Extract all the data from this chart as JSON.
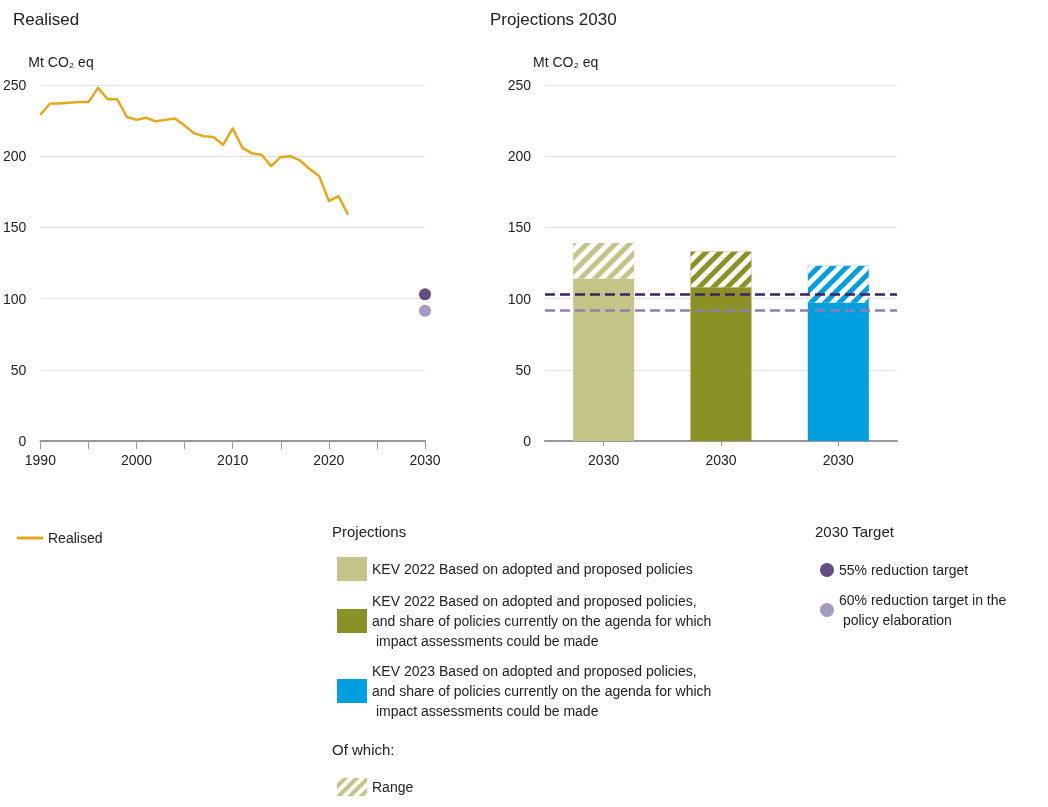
{
  "chart_data": [
    {
      "type": "line",
      "title": "Realised",
      "ylabel": "Mt CO₂ eq",
      "xlim": [
        1990,
        2030
      ],
      "xticks": [
        1990,
        {
          "value": 1995,
          "label": null
        },
        2000,
        {
          "value": 2005,
          "label": null
        },
        2010,
        {
          "value": 2015,
          "label": null
        },
        2020,
        {
          "value": 2025,
          "label": null
        },
        2030
      ],
      "ylim": [
        0,
        250
      ],
      "yticks": [
        0,
        50,
        100,
        150,
        200,
        250
      ],
      "grid": "y",
      "legend": "bottom",
      "legend_title": "2030 Target",
      "series": [
        {
          "name": "Realised",
          "type": "line",
          "color": "#e6a819",
          "marker": "none",
          "x": [
            1990,
            1991,
            1992,
            1993,
            1994,
            1995,
            1996,
            1997,
            1998,
            1999,
            2000,
            2001,
            2002,
            2003,
            2004,
            2005,
            2006,
            2007,
            2008,
            2009,
            2010,
            2011,
            2012,
            2013,
            2014,
            2015,
            2016,
            2017,
            2018,
            2019,
            2020,
            2021,
            2022
          ],
          "values": [
            229,
            237,
            237,
            237.5,
            238,
            238,
            248,
            240,
            240,
            227.5,
            225.5,
            227,
            224.5,
            225.5,
            226.5,
            221.5,
            216,
            214,
            213.5,
            208,
            219.5,
            206,
            202,
            201,
            193,
            199.5,
            200,
            197,
            191,
            186,
            168.5,
            172,
            159
          ]
        },
        {
          "name": "55% reduction target",
          "type": "scatter",
          "color": "#3d2163",
          "marker": "circle",
          "x": [
            2030
          ],
          "values": [
            103
          ]
        },
        {
          "name": "60% reduction target in the policy elaboration",
          "type": "scatter",
          "color": "#8d7fb2",
          "marker": "circle",
          "x": [
            2030
          ],
          "values": [
            91.5
          ]
        }
      ]
    },
    {
      "type": "bar",
      "title": "Projections 2030",
      "ylabel": "Mt CO₂ eq",
      "categories": [
        "2030",
        "2030",
        "2030"
      ],
      "ylim": [
        0,
        250
      ],
      "yticks": [
        0,
        50,
        100,
        150,
        200,
        250
      ],
      "grid": "y",
      "stacked": true,
      "legend": "bottom",
      "legend_title": "Projections",
      "annotations": [
        "Of which:"
      ],
      "series": [
        {
          "name": "KEV 2022 Based on adopted and proposed policies",
          "color": "#c4c487",
          "values": [
            114,
            null,
            null
          ]
        },
        {
          "name": "KEV 2022 Based on adopted and proposed policies, and share of policies currently on the agenda for which impact assessments could be made",
          "color": "#8c9125",
          "values": [
            null,
            108,
            null
          ]
        },
        {
          "name": "KEV 2023 Based on adopted and proposed policies, and share of policies currently on the agenda for which impact assessments could be made",
          "color": "#009fdf",
          "values": [
            null,
            null,
            97
          ]
        },
        {
          "name": "Range",
          "colors": [
            "#c4c487",
            "#8c9125",
            "#009fdf"
          ],
          "values": [
            25,
            25,
            26
          ]
        }
      ],
      "ref_lines": [
        {
          "axis": "y",
          "value": 103,
          "color": "#3d2163",
          "line_style": "dashed"
        },
        {
          "axis": "y",
          "value": 91.5,
          "color": "#8d7fb2",
          "line_style": "dashed"
        }
      ]
    }
  ]
}
